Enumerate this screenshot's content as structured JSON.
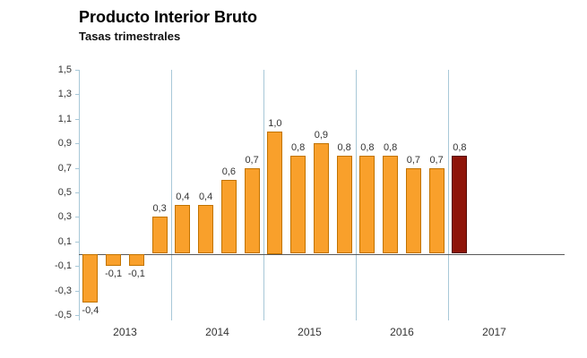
{
  "chart_data": {
    "type": "bar",
    "title": "Producto Interior Bruto",
    "subtitle": "Tasas trimestrales",
    "ylim": [
      -0.5,
      1.5
    ],
    "ytick_step": 0.2,
    "ytick_labels": [
      "1,5",
      "1,3",
      "1,1",
      "0,9",
      "0,7",
      "0,5",
      "0,3",
      "0,1",
      "-0,1",
      "-0,3",
      "-0,5"
    ],
    "categories_years": [
      "2013",
      "2014",
      "2015",
      "2016",
      "2017"
    ],
    "bars_per_year": [
      4,
      4,
      4,
      4,
      1
    ],
    "values": [
      -0.4,
      -0.1,
      -0.1,
      0.3,
      0.4,
      0.4,
      0.6,
      0.7,
      1.0,
      0.8,
      0.9,
      0.8,
      0.8,
      0.8,
      0.7,
      0.7,
      0.8
    ],
    "value_labels": [
      "-0,4",
      "-0,1",
      "-0,1",
      "0,3",
      "0,4",
      "0,4",
      "0,6",
      "0,7",
      "1,0",
      "0,8",
      "0,9",
      "0,8",
      "0,8",
      "0,8",
      "0,7",
      "0,7",
      "0,8"
    ],
    "highlight_index": 16,
    "grid": "vertical-year-separators",
    "legend": "none",
    "colors": {
      "bar_fill": "#F9A02B",
      "bar_border": "#C17300",
      "highlight_fill": "#8E1409",
      "highlight_border": "#550A05",
      "gridline": "#A8C8D8",
      "zero_line": "#595959",
      "text": "#333333"
    }
  }
}
